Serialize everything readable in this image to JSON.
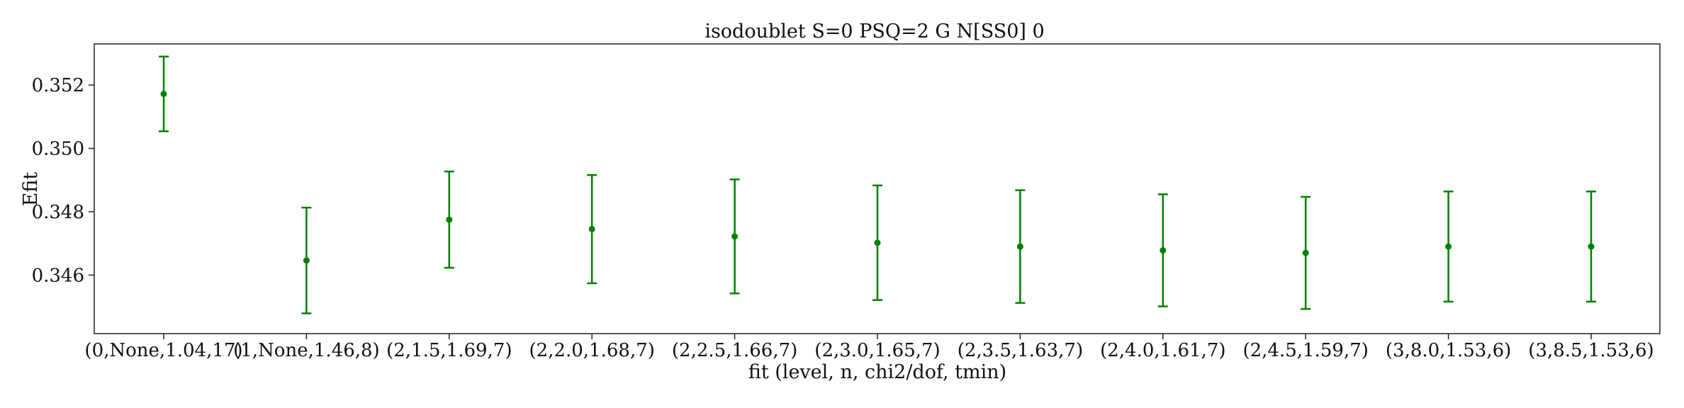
{
  "chart_data": {
    "type": "scatter",
    "title": "isodoublet S=0 PSQ=2 G N[SS0] 0",
    "xlabel": "fit (level, n, chi2/dof, tmin)",
    "ylabel": "Efit",
    "categories": [
      "(0,None,1.04,17)",
      "(1,None,1.46,8)",
      "(2,1.5,1.69,7)",
      "(2,2.0,1.68,7)",
      "(2,2.5,1.66,7)",
      "(2,3.0,1.65,7)",
      "(2,3.5,1.63,7)",
      "(2,4.0,1.61,7)",
      "(2,4.5,1.59,7)",
      "(3,8.0,1.53,6)",
      "(3,8.5,1.53,6)"
    ],
    "values": [
      0.35172,
      0.34646,
      0.34775,
      0.34745,
      0.34722,
      0.34702,
      0.3469,
      0.34678,
      0.3467,
      0.3469,
      0.3469
    ],
    "errors": [
      0.00118,
      0.00167,
      0.00152,
      0.00171,
      0.0018,
      0.00181,
      0.00178,
      0.00177,
      0.00177,
      0.00174,
      0.00174
    ],
    "ylim": [
      0.34415,
      0.3533
    ],
    "yticks": [
      0.346,
      0.348,
      0.35,
      0.352
    ],
    "ytick_labels": [
      "0.346",
      "0.348",
      "0.350",
      "0.352"
    ],
    "grid": false,
    "color": "#008000"
  }
}
